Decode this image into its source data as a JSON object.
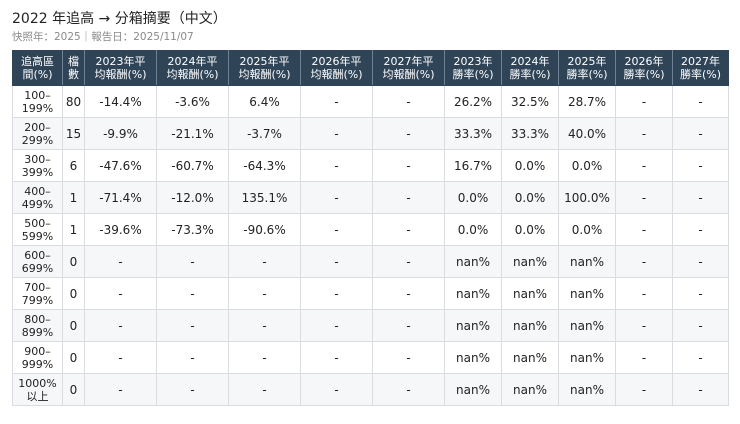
{
  "title": "2022 年追高 → 分箱摘要（中文）",
  "subtitle": "快照年：2025｜報告日：2025/11/07",
  "table": {
    "headers": [
      "追高區\n間(%)",
      "檔\n數",
      "2023年平\n均報酬(%)",
      "2024年平\n均報酬(%)",
      "2025年平\n均報酬(%)",
      "2026年平\n均報酬(%)",
      "2027年平\n均報酬(%)",
      "2023年\n勝率(%)",
      "2024年\n勝率(%)",
      "2025年\n勝率(%)",
      "2026年\n勝率(%)",
      "2027年\n勝率(%)"
    ],
    "rows": [
      [
        "100–\n199%",
        "80",
        "-14.4%",
        "-3.6%",
        "6.4%",
        "-",
        "-",
        "26.2%",
        "32.5%",
        "28.7%",
        "-",
        "-"
      ],
      [
        "200–\n299%",
        "15",
        "-9.9%",
        "-21.1%",
        "-3.7%",
        "-",
        "-",
        "33.3%",
        "33.3%",
        "40.0%",
        "-",
        "-"
      ],
      [
        "300–\n399%",
        "6",
        "-47.6%",
        "-60.7%",
        "-64.3%",
        "-",
        "-",
        "16.7%",
        "0.0%",
        "0.0%",
        "-",
        "-"
      ],
      [
        "400–\n499%",
        "1",
        "-71.4%",
        "-12.0%",
        "135.1%",
        "-",
        "-",
        "0.0%",
        "0.0%",
        "100.0%",
        "-",
        "-"
      ],
      [
        "500–\n599%",
        "1",
        "-39.6%",
        "-73.3%",
        "-90.6%",
        "-",
        "-",
        "0.0%",
        "0.0%",
        "0.0%",
        "-",
        "-"
      ],
      [
        "600–\n699%",
        "0",
        "-",
        "-",
        "-",
        "-",
        "-",
        "nan%",
        "nan%",
        "nan%",
        "-",
        "-"
      ],
      [
        "700–\n799%",
        "0",
        "-",
        "-",
        "-",
        "-",
        "-",
        "nan%",
        "nan%",
        "nan%",
        "-",
        "-"
      ],
      [
        "800–\n899%",
        "0",
        "-",
        "-",
        "-",
        "-",
        "-",
        "nan%",
        "nan%",
        "nan%",
        "-",
        "-"
      ],
      [
        "900–\n999%",
        "0",
        "-",
        "-",
        "-",
        "-",
        "-",
        "nan%",
        "nan%",
        "nan%",
        "-",
        "-"
      ],
      [
        "1000%\n以上",
        "0",
        "-",
        "-",
        "-",
        "-",
        "-",
        "nan%",
        "nan%",
        "nan%",
        "-",
        "-"
      ]
    ]
  },
  "colors": {
    "header_bg": "#2f4457",
    "header_text": "#ffffff",
    "stripe": "#f6f7f9",
    "border": "#d9dde2"
  }
}
